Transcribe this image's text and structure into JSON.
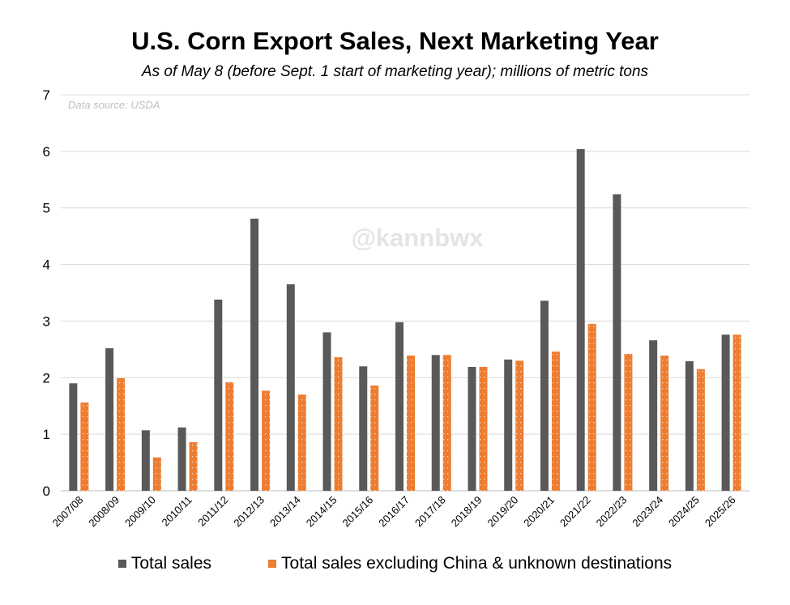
{
  "chart_data": {
    "type": "bar",
    "title": "U.S. Corn Export Sales, Next Marketing Year",
    "subtitle": "As of May 8 (before Sept. 1 start of marketing year); millions of metric tons",
    "annotation": "Data source: USDA",
    "watermark": "@kannbwx",
    "xlabel": "",
    "ylabel": "",
    "ylim": [
      0,
      7
    ],
    "yticks": [
      0,
      1,
      2,
      3,
      4,
      5,
      6,
      7
    ],
    "grid": true,
    "legend_position": "bottom",
    "categories": [
      "2007/08",
      "2008/09",
      "2009/10",
      "2010/11",
      "2011/12",
      "2012/13",
      "2013/14",
      "2014/15",
      "2015/16",
      "2016/17",
      "2017/18",
      "2018/19",
      "2019/20",
      "2020/21",
      "2021/22",
      "2022/23",
      "2023/24",
      "2024/25",
      "2025/26"
    ],
    "series": [
      {
        "name": "Total sales",
        "color": "#595959",
        "values": [
          1.9,
          2.52,
          1.07,
          1.12,
          3.38,
          4.81,
          3.65,
          2.8,
          2.2,
          2.98,
          2.4,
          2.19,
          2.32,
          3.36,
          6.04,
          5.24,
          2.66,
          2.29,
          2.76
        ]
      },
      {
        "name": "Total sales excluding China & unknown destinations",
        "color": "#ED7D31",
        "values": [
          1.56,
          1.99,
          0.59,
          0.86,
          1.92,
          1.77,
          1.7,
          2.36,
          1.86,
          2.39,
          2.4,
          2.19,
          2.3,
          2.46,
          2.95,
          2.42,
          2.39,
          2.15,
          2.76
        ]
      }
    ]
  }
}
